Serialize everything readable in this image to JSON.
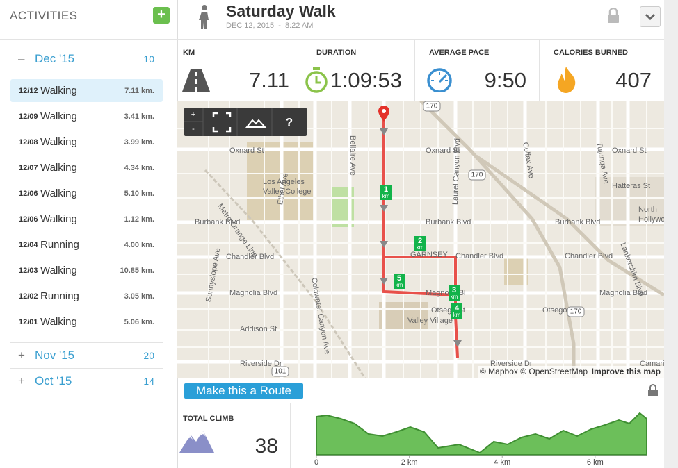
{
  "sidebar": {
    "title": "ACTIVITIES",
    "add_button": "+",
    "months": [
      {
        "toggle": "–",
        "label": "Dec '15",
        "count": 10,
        "activities": [
          {
            "date": "12/12",
            "type": "Walking",
            "distance": "7.11 km."
          },
          {
            "date": "12/09",
            "type": "Walking",
            "distance": "3.41 km."
          },
          {
            "date": "12/08",
            "type": "Walking",
            "distance": "3.99 km."
          },
          {
            "date": "12/07",
            "type": "Walking",
            "distance": "4.34 km."
          },
          {
            "date": "12/06",
            "type": "Walking",
            "distance": "5.10 km."
          },
          {
            "date": "12/06",
            "type": "Walking",
            "distance": "1.12 km."
          },
          {
            "date": "12/04",
            "type": "Running",
            "distance": "4.00 km."
          },
          {
            "date": "12/03",
            "type": "Walking",
            "distance": "10.85 km."
          },
          {
            "date": "12/02",
            "type": "Running",
            "distance": "3.05 km."
          },
          {
            "date": "12/01",
            "type": "Walking",
            "distance": "5.06 km."
          }
        ]
      },
      {
        "toggle": "+",
        "label": "Nov '15",
        "count": 20
      },
      {
        "toggle": "+",
        "label": "Oct '15",
        "count": 14
      }
    ]
  },
  "header": {
    "title": "Saturday Walk",
    "date": "DEC 12, 2015",
    "separator": "-",
    "time": "8:22 AM"
  },
  "stats": [
    {
      "label": "KM",
      "value": 7.11
    },
    {
      "label": "DURATION",
      "value": "1:09:53"
    },
    {
      "label": "AVERAGE PACE",
      "value": "9:50"
    },
    {
      "label": "CALORIES BURNED",
      "value": 407
    }
  ],
  "map": {
    "zoom_in": "+",
    "zoom_out": "-",
    "help": "?",
    "labels": [
      "Oxnard St",
      "Oxnard St",
      "Oxnard St",
      "Los Angeles",
      "Valley College",
      "Burbank Blvd",
      "Burbank Blvd",
      "Burbank Blvd",
      "Chandler Blvd",
      "GARNSEY",
      "Chandler Blvd",
      "Chandler Blvd",
      "Magnolia Blvd",
      "Magnolia Bl",
      "Magnolia Blvd",
      "Otsego St",
      "Otsego St",
      "Addison St",
      "Valley Village",
      "Riverside Dr",
      "Riverside Dr",
      "Camarillo St",
      "Hatteras St",
      "North",
      "Hollywood",
      "Bellaire Ave",
      "Ethel Ave",
      "Coldwater Canyon Ave",
      "Laurel Canyon Blvd",
      "Colfax Ave",
      "Tujunga Ave",
      "Lankershim Blvd",
      "Sunnyslope Ave",
      "Metro Orange Line"
    ],
    "shields": [
      "170",
      "170",
      "170",
      "101"
    ],
    "km_markers": [
      1,
      2,
      3,
      4,
      5
    ],
    "km_unit": "km",
    "attribution": "© Mapbox © OpenStreetMap",
    "improve": "Improve this map"
  },
  "route_button": "Make this a Route",
  "climb": {
    "label": "TOTAL CLIMB",
    "value": 38
  },
  "elevation": {
    "xlim": [
      0,
      7.11
    ],
    "xticks": [
      0,
      {
        "value": 2,
        "label": "2 km"
      },
      {
        "value": 4,
        "label": "4 km"
      },
      {
        "value": 6,
        "label": "6 km"
      }
    ]
  }
}
